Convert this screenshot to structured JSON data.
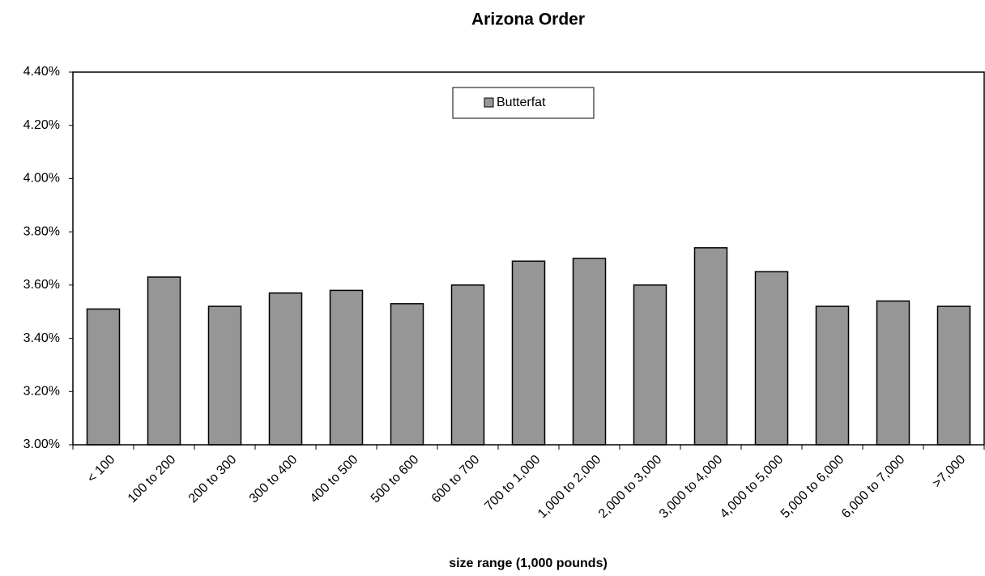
{
  "chart_data": {
    "type": "bar",
    "title": "Arizona Order",
    "x_label": "size range (1,000 pounds)",
    "categories": [
      "< 100",
      "100 to 200",
      "200 to 300",
      "300 to 400",
      "400 to 500",
      "500 to 600",
      "600 to 700",
      "700 to 1,000",
      "1,000 to 2,000",
      "2,000 to 3,000",
      "3,000 to 4,000",
      "4,000 to 5,000",
      "5,000 to 6,000",
      "6,000 to 7,000",
      ">7,000"
    ],
    "series": [
      {
        "name": "Butterfat",
        "color": "#969696",
        "values": [
          3.51,
          3.63,
          3.52,
          3.57,
          3.58,
          3.53,
          3.6,
          3.69,
          3.7,
          3.6,
          3.74,
          3.65,
          3.52,
          3.54,
          3.52
        ]
      }
    ],
    "ylim": [
      3.0,
      4.4
    ],
    "yticks": [
      {
        "value": 3.0,
        "label": "3.00%"
      },
      {
        "value": 3.2,
        "label": "3.20%"
      },
      {
        "value": 3.4,
        "label": "3.40%"
      },
      {
        "value": 3.6,
        "label": "3.60%"
      },
      {
        "value": 3.8,
        "label": "3.80%"
      },
      {
        "value": 4.0,
        "label": "4.00%"
      },
      {
        "value": 4.2,
        "label": "4.20%"
      },
      {
        "value": 4.4,
        "label": "4.40%"
      }
    ],
    "grid": false,
    "legend": "top"
  }
}
